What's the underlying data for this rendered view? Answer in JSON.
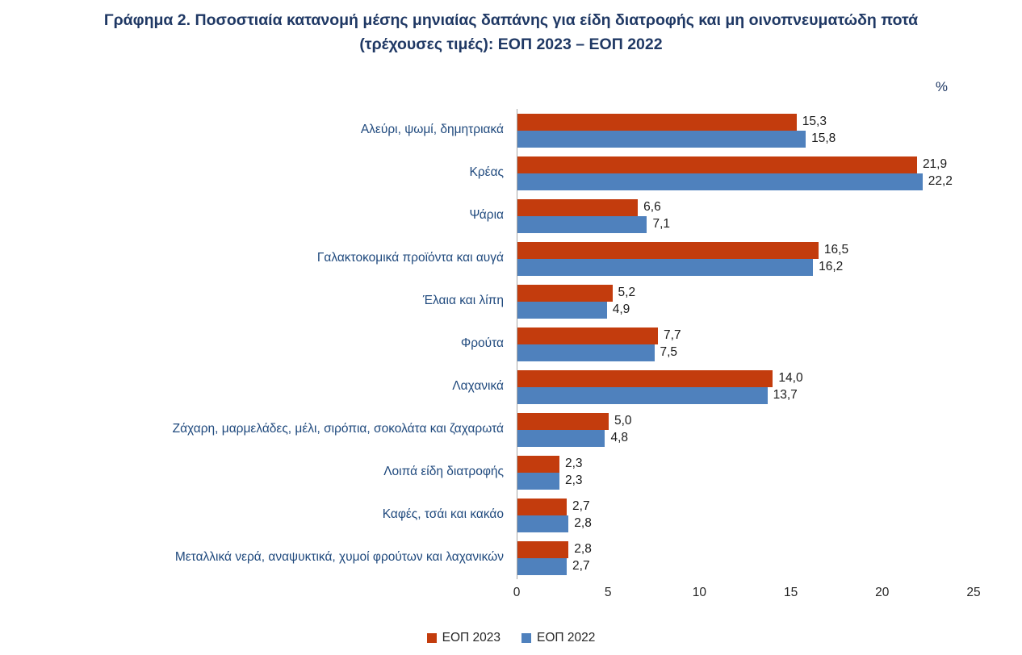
{
  "title": "Γράφημα 2.  Ποσοστιαία κατανομή μέσης μηνιαίας δαπάνης για είδη διατροφής και μη οινοπνευματώδη ποτά (τρέχουσες τιμές): ΕΟΠ 2023 – ΕΟΠ 2022",
  "percent_label": "%",
  "chart_data": {
    "type": "bar",
    "orientation": "horizontal",
    "title": "Γράφημα 2.  Ποσοστιαία κατανομή μέσης μηνιαίας δαπάνης για είδη διατροφής και μη οινοπνευματώδη ποτά (τρέχουσες τιμές): ΕΟΠ 2023 – ΕΟΠ 2022",
    "xlabel": "%",
    "xlim": [
      0,
      25
    ],
    "x_ticks": [
      "0",
      "5",
      "10",
      "15",
      "20",
      "25"
    ],
    "grid": false,
    "legend_position": "bottom",
    "categories": [
      "Αλεύρι, ψωμί, δημητριακά",
      "Κρέας",
      "Ψάρια",
      "Γαλακτοκομικά προϊόντα και αυγά",
      "Έλαια και λίπη",
      "Φρούτα",
      "Λαχανικά",
      "Ζάχαρη, μαρμελάδες, μέλι, σιρόπια, σοκολάτα και ζαχαρωτά",
      "Λοιπά είδη διατροφής",
      "Καφές, τσάι και κακάο",
      "Μεταλλικά νερά, αναψυκτικά, χυμοί φρούτων και λαχανικών"
    ],
    "series": [
      {
        "name": "ΕΟΠ 2023",
        "color": "#C33C0D",
        "values": [
          15.3,
          21.9,
          6.6,
          16.5,
          5.2,
          7.7,
          14.0,
          5.0,
          2.3,
          2.7,
          2.8
        ],
        "labels": [
          "15,3",
          "21,9",
          "6,6",
          "16,5",
          "5,2",
          "7,7",
          "14,0",
          "5,0",
          "2,3",
          "2,7",
          "2,8"
        ]
      },
      {
        "name": "ΕΟΠ 2022",
        "color": "#4F81BD",
        "values": [
          15.8,
          22.2,
          7.1,
          16.2,
          4.9,
          7.5,
          13.7,
          4.8,
          2.3,
          2.8,
          2.7
        ],
        "labels": [
          "15,8",
          "22,2",
          "7,1",
          "16,2",
          "4,9",
          "7,5",
          "13,7",
          "4,8",
          "2,3",
          "2,8",
          "2,7"
        ]
      }
    ]
  }
}
